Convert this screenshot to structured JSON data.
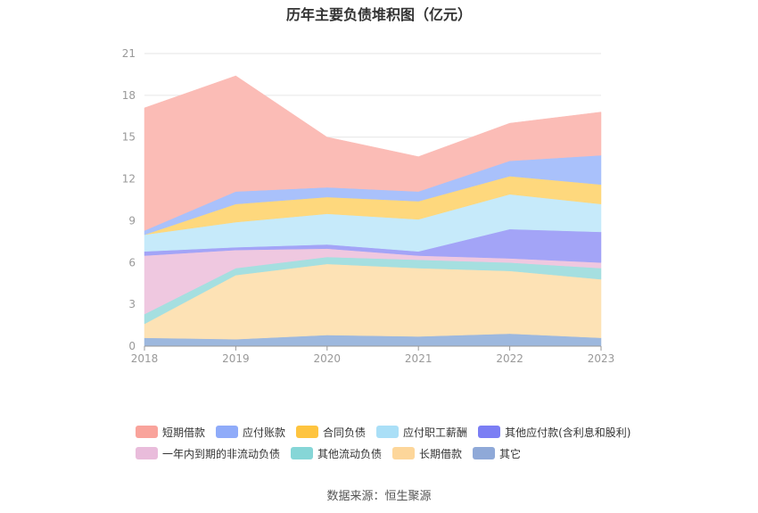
{
  "chart_data": {
    "type": "area",
    "title": "历年主要负债堆积图（亿元）",
    "categories": [
      "2018",
      "2019",
      "2020",
      "2021",
      "2022",
      "2023"
    ],
    "ylim": [
      0,
      21
    ],
    "yticks": [
      0,
      3,
      6,
      9,
      12,
      15,
      18,
      21
    ],
    "grid": true,
    "stacked": true,
    "legend_position": "bottom",
    "series": [
      {
        "name": "其它",
        "color": "#9db8de",
        "values": [
          0.6,
          0.5,
          0.8,
          0.7,
          0.9,
          0.6
        ]
      },
      {
        "name": "长期借款",
        "color": "#fde2b5",
        "values": [
          1.0,
          4.6,
          5.1,
          4.9,
          4.5,
          4.2
        ]
      },
      {
        "name": "其他流动负债",
        "color": "#a5dfe0",
        "values": [
          0.7,
          0.5,
          0.5,
          0.6,
          0.6,
          0.8
        ]
      },
      {
        "name": "一年内到期的非流动负债",
        "color": "#efc8e0",
        "values": [
          4.2,
          1.3,
          0.6,
          0.3,
          0.3,
          0.4
        ]
      },
      {
        "name": "其他应付款(含利息和股利)",
        "color": "#a3a4f7",
        "values": [
          0.3,
          0.2,
          0.3,
          0.3,
          2.1,
          2.2
        ]
      },
      {
        "name": "应付职工薪酬",
        "color": "#c6eafa",
        "values": [
          1.2,
          1.8,
          2.2,
          2.3,
          2.5,
          2.0
        ]
      },
      {
        "name": "合同负债",
        "color": "#fed87d",
        "values": [
          0.0,
          1.3,
          1.2,
          1.3,
          1.3,
          1.4
        ]
      },
      {
        "name": "应付账款",
        "color": "#a9c1fb",
        "values": [
          0.3,
          0.9,
          0.7,
          0.7,
          1.1,
          2.1
        ]
      },
      {
        "name": "短期借款",
        "color": "#fbbcb6",
        "values": [
          8.8,
          8.3,
          3.6,
          2.5,
          2.7,
          3.1
        ]
      }
    ]
  },
  "legend": {
    "rows": [
      [
        {
          "label": "短期借款",
          "color": "#f9a39b"
        },
        {
          "label": "应付账款",
          "color": "#8fabf9"
        },
        {
          "label": "合同负债",
          "color": "#fec43f"
        },
        {
          "label": "应付职工薪酬",
          "color": "#aadff7"
        },
        {
          "label": "其他应付款(含利息和股利)",
          "color": "#7b7ef4"
        }
      ],
      [
        {
          "label": "一年内到期的非流动负债",
          "color": "#e9bcdb"
        },
        {
          "label": "其他流动负债",
          "color": "#86d6d7"
        },
        {
          "label": "长期借款",
          "color": "#fdd69a"
        },
        {
          "label": "其它",
          "color": "#8fa9d8"
        }
      ]
    ]
  },
  "source_text": "数据来源：恒生聚源"
}
